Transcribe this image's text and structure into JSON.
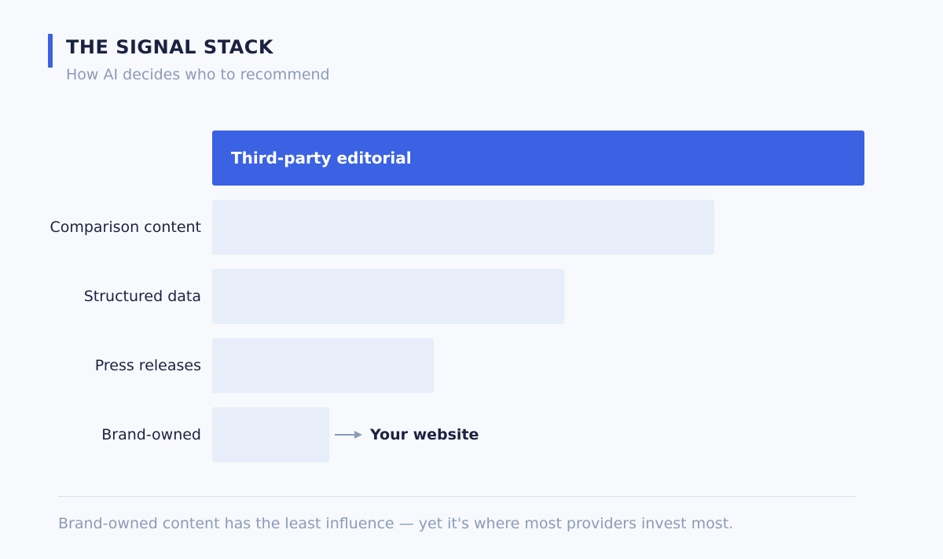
{
  "header": {
    "title": "THE SIGNAL STACK",
    "subtitle": "How AI decides who to recommend"
  },
  "colors": {
    "accent": "#3b62e3",
    "bar_highlight": "#3b62e3",
    "bar_muted": "#e8edfa",
    "divider": "#dde2ec",
    "arrow": "#8c9bb8"
  },
  "chart_data": {
    "type": "bar",
    "orientation": "horizontal",
    "title": "THE SIGNAL STACK",
    "subtitle": "How AI decides who to recommend",
    "categories": [
      "Third-party editorial",
      "Comparison content",
      "Structured data",
      "Press releases",
      "Brand-owned"
    ],
    "values": [
      100,
      77,
      54,
      34,
      18
    ],
    "value_scale": "relative (longest bar = 100)",
    "highlight_index": 0,
    "annotations": [
      {
        "category": "Brand-owned",
        "text": "Your website",
        "icon": "arrow-right-icon"
      }
    ],
    "grid": false,
    "legend": "none"
  },
  "footnote": "Brand-owned content has the least influence — yet it's where most providers invest most."
}
